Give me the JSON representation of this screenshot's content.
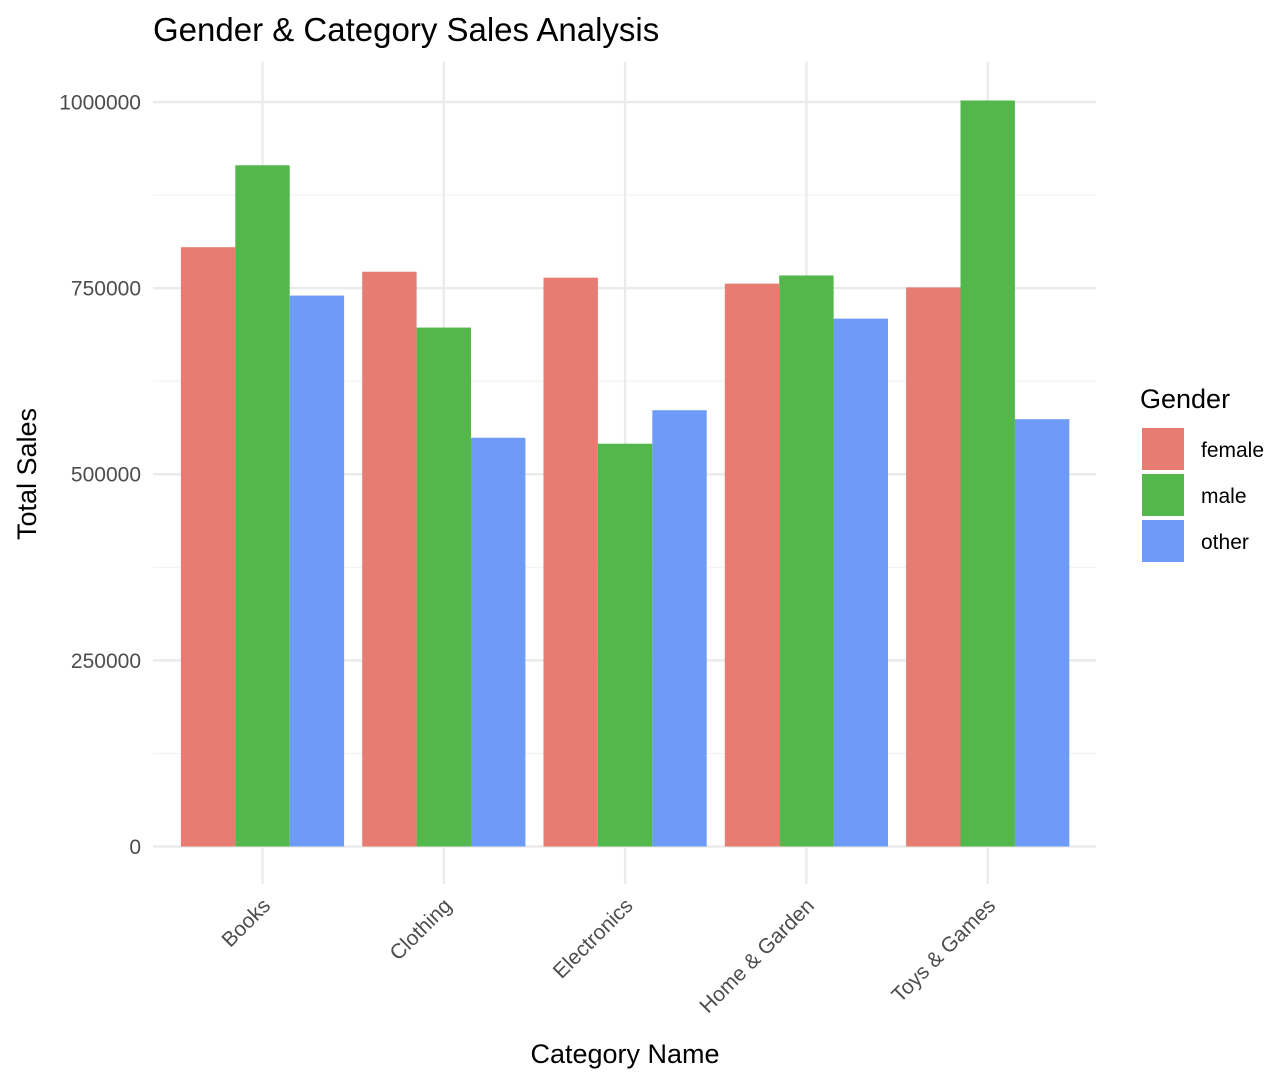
{
  "chart_data": {
    "type": "bar",
    "title": "Gender & Category Sales Analysis",
    "xlabel": "Category Name",
    "ylabel": "Total Sales",
    "categories": [
      "Books",
      "Clothing",
      "Electronics",
      "Home & Garden",
      "Toys & Games"
    ],
    "series": [
      {
        "name": "female",
        "color": "#E77D72",
        "values": [
          805000,
          772000,
          764000,
          756000,
          751000
        ]
      },
      {
        "name": "male",
        "color": "#53B74C",
        "values": [
          915000,
          697000,
          541000,
          767000,
          1002000
        ]
      },
      {
        "name": "other",
        "color": "#6E9AF8",
        "values": [
          740000,
          549000,
          586000,
          709000,
          574000
        ]
      }
    ],
    "ylim": [
      0,
      1002000
    ],
    "y_ticks": [
      0,
      250000,
      500000,
      750000,
      1000000
    ],
    "y_tick_labels": [
      "0",
      "250000",
      "500000",
      "750000",
      "1000000"
    ],
    "grid": true,
    "legend": {
      "title": "Gender",
      "position": "right"
    }
  }
}
